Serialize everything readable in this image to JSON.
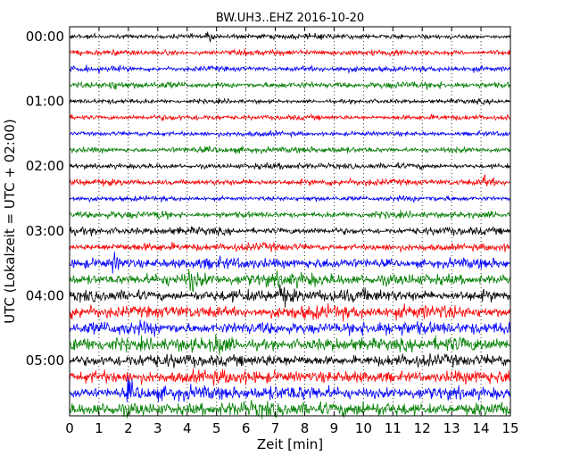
{
  "chart_data": {
    "type": "line",
    "title": "BW.UH3..EHZ 2016-10-20",
    "xlabel": "Zeit  [min]",
    "ylabel": "UTC (Lokalzeit = UTC + 02:00)",
    "xlim": [
      0,
      15
    ],
    "x_ticks": [
      "0",
      "1",
      "2",
      "3",
      "4",
      "5",
      "6",
      "7",
      "8",
      "9",
      "10",
      "11",
      "12",
      "13",
      "14",
      "15"
    ],
    "y_ticks": [
      "00:00",
      "01:00",
      "02:00",
      "03:00",
      "04:00",
      "05:00"
    ],
    "rows_per_hour": 4,
    "row_count": 24,
    "row_minutes": 15,
    "grid": true,
    "color_cycle": [
      "#000000",
      "#ff0000",
      "#0000ff",
      "#008000"
    ],
    "trace_amplitude_by_row": [
      0.25,
      0.3,
      0.28,
      0.32,
      0.22,
      0.26,
      0.24,
      0.3,
      0.28,
      0.32,
      0.26,
      0.32,
      0.36,
      0.38,
      0.52,
      0.62,
      0.6,
      0.66,
      0.64,
      0.66,
      0.6,
      0.64,
      0.68,
      0.72
    ],
    "events": [
      {
        "row": 0,
        "minute": 4.7
      },
      {
        "row": 3,
        "minute": 1.4
      },
      {
        "row": 11,
        "minute": 3.0
      },
      {
        "row": 9,
        "minute": 14.1
      },
      {
        "row": 14,
        "minute": 1.5
      },
      {
        "row": 15,
        "minute": 4.1
      },
      {
        "row": 16,
        "minute": 7.2
      },
      {
        "row": 19,
        "minute": 5.0
      },
      {
        "row": 22,
        "minute": 2.0
      }
    ]
  }
}
